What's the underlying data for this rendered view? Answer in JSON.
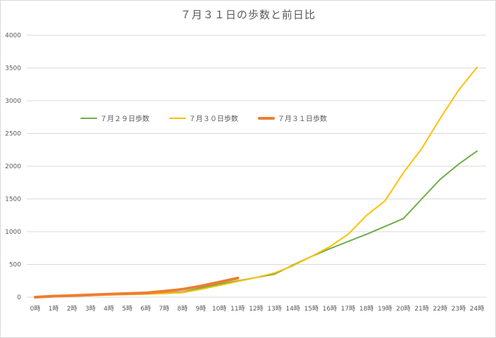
{
  "chart_data": {
    "type": "line",
    "title": "７月３１日の歩数と前日比",
    "xlabel": "",
    "ylabel": "",
    "ylim": [
      0,
      4000
    ],
    "yticks": [
      0,
      500,
      1000,
      1500,
      2000,
      2500,
      3000,
      3500,
      4000
    ],
    "grid": true,
    "legend_position": "upper-left-inside",
    "categories": [
      "0時",
      "1時",
      "2時",
      "3時",
      "4時",
      "5時",
      "6時",
      "7時",
      "8時",
      "9時",
      "10時",
      "11時",
      "12時",
      "13時",
      "14時",
      "15時",
      "16時",
      "17時",
      "18時",
      "19時",
      "20時",
      "21時",
      "22時",
      "23時",
      "24時"
    ],
    "series": [
      {
        "name": "７月２９日歩数",
        "color": "#70ad47",
        "width": 2,
        "values": [
          0,
          10,
          20,
          30,
          40,
          45,
          50,
          60,
          80,
          140,
          200,
          250,
          300,
          350,
          490,
          620,
          740,
          850,
          960,
          1080,
          1200,
          1500,
          1800,
          2030,
          2230
        ]
      },
      {
        "name": "７月３０日歩数",
        "color": "#ffc000",
        "width": 2,
        "values": [
          0,
          5,
          15,
          25,
          35,
          40,
          45,
          55,
          70,
          120,
          180,
          240,
          300,
          370,
          480,
          620,
          770,
          960,
          1250,
          1470,
          1900,
          2270,
          2730,
          3160,
          3510
        ]
      },
      {
        "name": "７月３１日歩数",
        "color": "#ed7d31",
        "width": 4,
        "values": [
          0,
          15,
          25,
          35,
          45,
          55,
          65,
          90,
          120,
          170,
          230,
          290
        ]
      }
    ]
  }
}
